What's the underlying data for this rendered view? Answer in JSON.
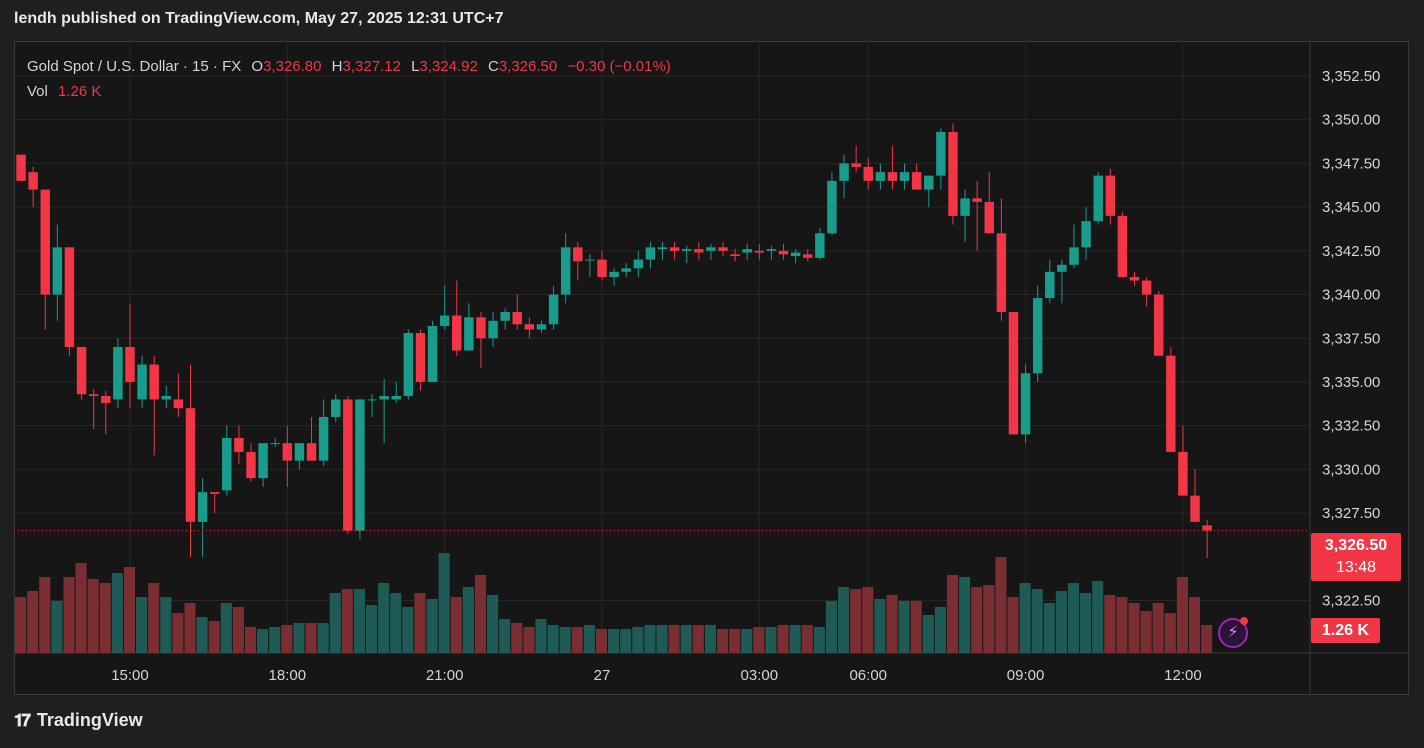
{
  "header": {
    "publisher_line": "lendh published on TradingView.com, May 27, 2025 12:31 UTC+7"
  },
  "legend": {
    "symbol": "Gold Spot / U.S. Dollar · 15 · FX",
    "o_label": "O",
    "o_value": "3,326.80",
    "h_label": "H",
    "h_value": "3,327.12",
    "l_label": "L",
    "l_value": "3,324.92",
    "c_label": "C",
    "c_value": "3,326.50",
    "change": "−0.30 (−0.01%)",
    "vol_label": "Vol",
    "vol_value": "1.26 K"
  },
  "price_badge": {
    "price": "3,326.50",
    "countdown": "13:48"
  },
  "volume_badge": "1.26 K",
  "footer": {
    "brand": "TradingView"
  },
  "colors": {
    "up": "#1a9c8c",
    "down": "#f23645",
    "vol_up": "#1f5b56",
    "vol_down": "#7a2e32",
    "grid": "#262626",
    "bg": "#161616"
  },
  "icons": {
    "flash": "lightning-icon",
    "logo": "tradingview-logo-icon"
  },
  "chart_data": {
    "type": "candlestick",
    "y_ticks": [
      "3,352.50",
      "3,350.00",
      "3,347.50",
      "3,345.00",
      "3,342.50",
      "3,340.00",
      "3,337.50",
      "3,335.00",
      "3,332.50",
      "3,330.00",
      "3,327.50",
      "3,322.50"
    ],
    "x_ticks": [
      "15:00",
      "18:00",
      "21:00",
      "27",
      "03:00",
      "06:00",
      "09:00",
      "12:00"
    ],
    "ylim": [
      3319.5,
      3354.5
    ],
    "last_price": 3326.5,
    "candles": [
      {
        "o": 3348.0,
        "h": 3348.0,
        "l": 3346.5,
        "c": 3346.5,
        "v": 28
      },
      {
        "o": 3347.0,
        "h": 3347.3,
        "l": 3345.0,
        "c": 3346.0,
        "v": 31
      },
      {
        "o": 3346.0,
        "h": 3346.0,
        "l": 3338.0,
        "c": 3340.0,
        "v": 38
      },
      {
        "o": 3340.0,
        "h": 3344.0,
        "l": 3338.5,
        "c": 3342.7,
        "v": 26
      },
      {
        "o": 3342.7,
        "h": 3342.7,
        "l": 3336.5,
        "c": 3337.0,
        "v": 38
      },
      {
        "o": 3337.0,
        "h": 3337.0,
        "l": 3334.0,
        "c": 3334.3,
        "v": 45
      },
      {
        "o": 3334.3,
        "h": 3334.6,
        "l": 3332.3,
        "c": 3334.2,
        "v": 37
      },
      {
        "o": 3334.2,
        "h": 3334.5,
        "l": 3332.0,
        "c": 3333.8,
        "v": 35
      },
      {
        "o": 3334.0,
        "h": 3337.5,
        "l": 3333.5,
        "c": 3337.0,
        "v": 40
      },
      {
        "o": 3337.0,
        "h": 3339.5,
        "l": 3333.5,
        "c": 3335.0,
        "v": 43
      },
      {
        "o": 3334.0,
        "h": 3336.5,
        "l": 3333.5,
        "c": 3336.0,
        "v": 28
      },
      {
        "o": 3336.0,
        "h": 3336.5,
        "l": 3330.8,
        "c": 3334.0,
        "v": 35
      },
      {
        "o": 3334.0,
        "h": 3334.8,
        "l": 3333.5,
        "c": 3334.2,
        "v": 28
      },
      {
        "o": 3334.0,
        "h": 3335.5,
        "l": 3333.0,
        "c": 3333.5,
        "v": 20
      },
      {
        "o": 3333.5,
        "h": 3336.0,
        "l": 3325.0,
        "c": 3327.0,
        "v": 25
      },
      {
        "o": 3327.0,
        "h": 3329.5,
        "l": 3325.0,
        "c": 3328.7,
        "v": 18
      },
      {
        "o": 3328.7,
        "h": 3328.7,
        "l": 3327.5,
        "c": 3328.6,
        "v": 16
      },
      {
        "o": 3328.8,
        "h": 3332.5,
        "l": 3328.5,
        "c": 3331.8,
        "v": 25
      },
      {
        "o": 3331.8,
        "h": 3332.5,
        "l": 3330.3,
        "c": 3331.0,
        "v": 23
      },
      {
        "o": 3331.0,
        "h": 3331.5,
        "l": 3329.3,
        "c": 3329.5,
        "v": 13
      },
      {
        "o": 3329.5,
        "h": 3331.5,
        "l": 3329.0,
        "c": 3331.5,
        "v": 12
      },
      {
        "o": 3331.5,
        "h": 3331.8,
        "l": 3331.3,
        "c": 3331.5,
        "v": 13
      },
      {
        "o": 3331.5,
        "h": 3332.5,
        "l": 3329.0,
        "c": 3330.5,
        "v": 14
      },
      {
        "o": 3330.5,
        "h": 3331.5,
        "l": 3330.0,
        "c": 3331.5,
        "v": 15
      },
      {
        "o": 3331.5,
        "h": 3333.0,
        "l": 3330.7,
        "c": 3330.5,
        "v": 15
      },
      {
        "o": 3330.5,
        "h": 3334.0,
        "l": 3330.2,
        "c": 3333.0,
        "v": 15
      },
      {
        "o": 3333.0,
        "h": 3334.3,
        "l": 3332.7,
        "c": 3334.0,
        "v": 30
      },
      {
        "o": 3334.0,
        "h": 3334.2,
        "l": 3326.3,
        "c": 3326.5,
        "v": 32
      },
      {
        "o": 3326.5,
        "h": 3334.0,
        "l": 3326.0,
        "c": 3334.0,
        "v": 32
      },
      {
        "o": 3334.0,
        "h": 3334.3,
        "l": 3333.0,
        "c": 3334.0,
        "v": 24
      },
      {
        "o": 3334.0,
        "h": 3335.2,
        "l": 3331.5,
        "c": 3334.2,
        "v": 35
      },
      {
        "o": 3334.0,
        "h": 3335.0,
        "l": 3333.8,
        "c": 3334.2,
        "v": 30
      },
      {
        "o": 3334.2,
        "h": 3338.0,
        "l": 3334.0,
        "c": 3337.8,
        "v": 23
      },
      {
        "o": 3337.8,
        "h": 3338.0,
        "l": 3334.5,
        "c": 3335.0,
        "v": 30
      },
      {
        "o": 3335.0,
        "h": 3338.5,
        "l": 3335.0,
        "c": 3338.2,
        "v": 27
      },
      {
        "o": 3338.2,
        "h": 3340.5,
        "l": 3338.0,
        "c": 3338.8,
        "v": 50
      },
      {
        "o": 3338.8,
        "h": 3340.8,
        "l": 3336.5,
        "c": 3336.8,
        "v": 28
      },
      {
        "o": 3336.8,
        "h": 3339.5,
        "l": 3336.8,
        "c": 3338.7,
        "v": 33
      },
      {
        "o": 3338.7,
        "h": 3339.0,
        "l": 3335.8,
        "c": 3337.5,
        "v": 39
      },
      {
        "o": 3337.5,
        "h": 3339.0,
        "l": 3337.0,
        "c": 3338.5,
        "v": 29
      },
      {
        "o": 3338.5,
        "h": 3339.2,
        "l": 3338.0,
        "c": 3339.0,
        "v": 17
      },
      {
        "o": 3339.0,
        "h": 3340.0,
        "l": 3338.0,
        "c": 3338.3,
        "v": 15
      },
      {
        "o": 3338.3,
        "h": 3338.7,
        "l": 3337.5,
        "c": 3338.0,
        "v": 13
      },
      {
        "o": 3338.0,
        "h": 3338.5,
        "l": 3337.8,
        "c": 3338.3,
        "v": 17
      },
      {
        "o": 3338.3,
        "h": 3340.5,
        "l": 3338.0,
        "c": 3340.0,
        "v": 14
      },
      {
        "o": 3340.0,
        "h": 3343.5,
        "l": 3339.5,
        "c": 3342.7,
        "v": 13
      },
      {
        "o": 3342.7,
        "h": 3343.0,
        "l": 3340.8,
        "c": 3341.9,
        "v": 13
      },
      {
        "o": 3342.0,
        "h": 3342.3,
        "l": 3341.0,
        "c": 3342.0,
        "v": 14
      },
      {
        "o": 3342.0,
        "h": 3342.5,
        "l": 3340.8,
        "c": 3341.0,
        "v": 12
      },
      {
        "o": 3341.0,
        "h": 3341.5,
        "l": 3340.5,
        "c": 3341.3,
        "v": 12
      },
      {
        "o": 3341.3,
        "h": 3341.8,
        "l": 3341.0,
        "c": 3341.5,
        "v": 12
      },
      {
        "o": 3341.5,
        "h": 3342.5,
        "l": 3341.0,
        "c": 3342.0,
        "v": 13
      },
      {
        "o": 3342.0,
        "h": 3343.0,
        "l": 3341.5,
        "c": 3342.7,
        "v": 14
      },
      {
        "o": 3342.6,
        "h": 3343.0,
        "l": 3342.0,
        "c": 3342.7,
        "v": 14
      },
      {
        "o": 3342.7,
        "h": 3343.0,
        "l": 3342.0,
        "c": 3342.5,
        "v": 14
      },
      {
        "o": 3342.5,
        "h": 3342.8,
        "l": 3341.8,
        "c": 3342.6,
        "v": 14
      },
      {
        "o": 3342.6,
        "h": 3343.0,
        "l": 3342.0,
        "c": 3342.4,
        "v": 14
      },
      {
        "o": 3342.5,
        "h": 3342.9,
        "l": 3342.0,
        "c": 3342.7,
        "v": 14
      },
      {
        "o": 3342.7,
        "h": 3343.0,
        "l": 3342.2,
        "c": 3342.5,
        "v": 12
      },
      {
        "o": 3342.3,
        "h": 3342.6,
        "l": 3341.9,
        "c": 3342.2,
        "v": 12
      },
      {
        "o": 3342.4,
        "h": 3342.9,
        "l": 3342.0,
        "c": 3342.6,
        "v": 12
      },
      {
        "o": 3342.5,
        "h": 3342.9,
        "l": 3342.0,
        "c": 3342.4,
        "v": 13
      },
      {
        "o": 3342.5,
        "h": 3342.8,
        "l": 3342.0,
        "c": 3342.6,
        "v": 13
      },
      {
        "o": 3342.5,
        "h": 3342.9,
        "l": 3342.0,
        "c": 3342.3,
        "v": 14
      },
      {
        "o": 3342.2,
        "h": 3342.6,
        "l": 3341.8,
        "c": 3342.4,
        "v": 14
      },
      {
        "o": 3342.3,
        "h": 3342.6,
        "l": 3341.9,
        "c": 3342.1,
        "v": 14
      },
      {
        "o": 3342.1,
        "h": 3343.8,
        "l": 3342.0,
        "c": 3343.5,
        "v": 13
      },
      {
        "o": 3343.5,
        "h": 3347.0,
        "l": 3343.4,
        "c": 3346.5,
        "v": 26
      },
      {
        "o": 3346.5,
        "h": 3348.0,
        "l": 3345.5,
        "c": 3347.5,
        "v": 33
      },
      {
        "o": 3347.5,
        "h": 3348.5,
        "l": 3347.0,
        "c": 3347.3,
        "v": 32
      },
      {
        "o": 3347.3,
        "h": 3347.8,
        "l": 3346.0,
        "c": 3346.5,
        "v": 33
      },
      {
        "o": 3346.5,
        "h": 3347.5,
        "l": 3346.0,
        "c": 3347.0,
        "v": 27
      },
      {
        "o": 3347.0,
        "h": 3348.5,
        "l": 3346.0,
        "c": 3346.5,
        "v": 29
      },
      {
        "o": 3346.5,
        "h": 3347.5,
        "l": 3346.0,
        "c": 3347.0,
        "v": 26
      },
      {
        "o": 3347.0,
        "h": 3347.5,
        "l": 3346.0,
        "c": 3346.0,
        "v": 26
      },
      {
        "o": 3346.0,
        "h": 3346.8,
        "l": 3345.0,
        "c": 3346.8,
        "v": 19
      },
      {
        "o": 3346.8,
        "h": 3349.5,
        "l": 3346.0,
        "c": 3349.3,
        "v": 23
      },
      {
        "o": 3349.3,
        "h": 3349.8,
        "l": 3344.0,
        "c": 3344.5,
        "v": 39
      },
      {
        "o": 3344.5,
        "h": 3346.0,
        "l": 3343.0,
        "c": 3345.5,
        "v": 38
      },
      {
        "o": 3345.5,
        "h": 3346.5,
        "l": 3342.5,
        "c": 3345.3,
        "v": 33
      },
      {
        "o": 3345.3,
        "h": 3347.0,
        "l": 3343.5,
        "c": 3343.5,
        "v": 34
      },
      {
        "o": 3343.5,
        "h": 3345.5,
        "l": 3338.5,
        "c": 3339.0,
        "v": 48
      },
      {
        "o": 3339.0,
        "h": 3339.0,
        "l": 3332.0,
        "c": 3332.0,
        "v": 28
      },
      {
        "o": 3332.0,
        "h": 3336.0,
        "l": 3331.5,
        "c": 3335.5,
        "v": 35
      },
      {
        "o": 3335.5,
        "h": 3340.5,
        "l": 3335.0,
        "c": 3339.8,
        "v": 32
      },
      {
        "o": 3339.8,
        "h": 3342.0,
        "l": 3339.5,
        "c": 3341.3,
        "v": 25
      },
      {
        "o": 3341.3,
        "h": 3342.0,
        "l": 3339.5,
        "c": 3341.7,
        "v": 31
      },
      {
        "o": 3341.7,
        "h": 3344.0,
        "l": 3341.5,
        "c": 3342.7,
        "v": 35
      },
      {
        "o": 3342.7,
        "h": 3345.0,
        "l": 3342.0,
        "c": 3344.2,
        "v": 30
      },
      {
        "o": 3344.2,
        "h": 3347.0,
        "l": 3344.0,
        "c": 3346.8,
        "v": 36
      },
      {
        "o": 3346.8,
        "h": 3347.2,
        "l": 3344.0,
        "c": 3344.5,
        "v": 29
      },
      {
        "o": 3344.5,
        "h": 3344.7,
        "l": 3341.0,
        "c": 3341.0,
        "v": 28
      },
      {
        "o": 3341.0,
        "h": 3341.3,
        "l": 3340.5,
        "c": 3340.8,
        "v": 25
      },
      {
        "o": 3340.8,
        "h": 3341.0,
        "l": 3339.3,
        "c": 3340.0,
        "v": 21
      },
      {
        "o": 3340.0,
        "h": 3340.2,
        "l": 3336.5,
        "c": 3336.5,
        "v": 25
      },
      {
        "o": 3336.5,
        "h": 3337.0,
        "l": 3331.0,
        "c": 3331.0,
        "v": 20
      },
      {
        "o": 3331.0,
        "h": 3332.5,
        "l": 3328.5,
        "c": 3328.5,
        "v": 38
      },
      {
        "o": 3328.5,
        "h": 3330.0,
        "l": 3327.0,
        "c": 3327.0,
        "v": 28
      },
      {
        "o": 3326.8,
        "h": 3327.12,
        "l": 3324.92,
        "c": 3326.5,
        "v": 14
      }
    ]
  }
}
